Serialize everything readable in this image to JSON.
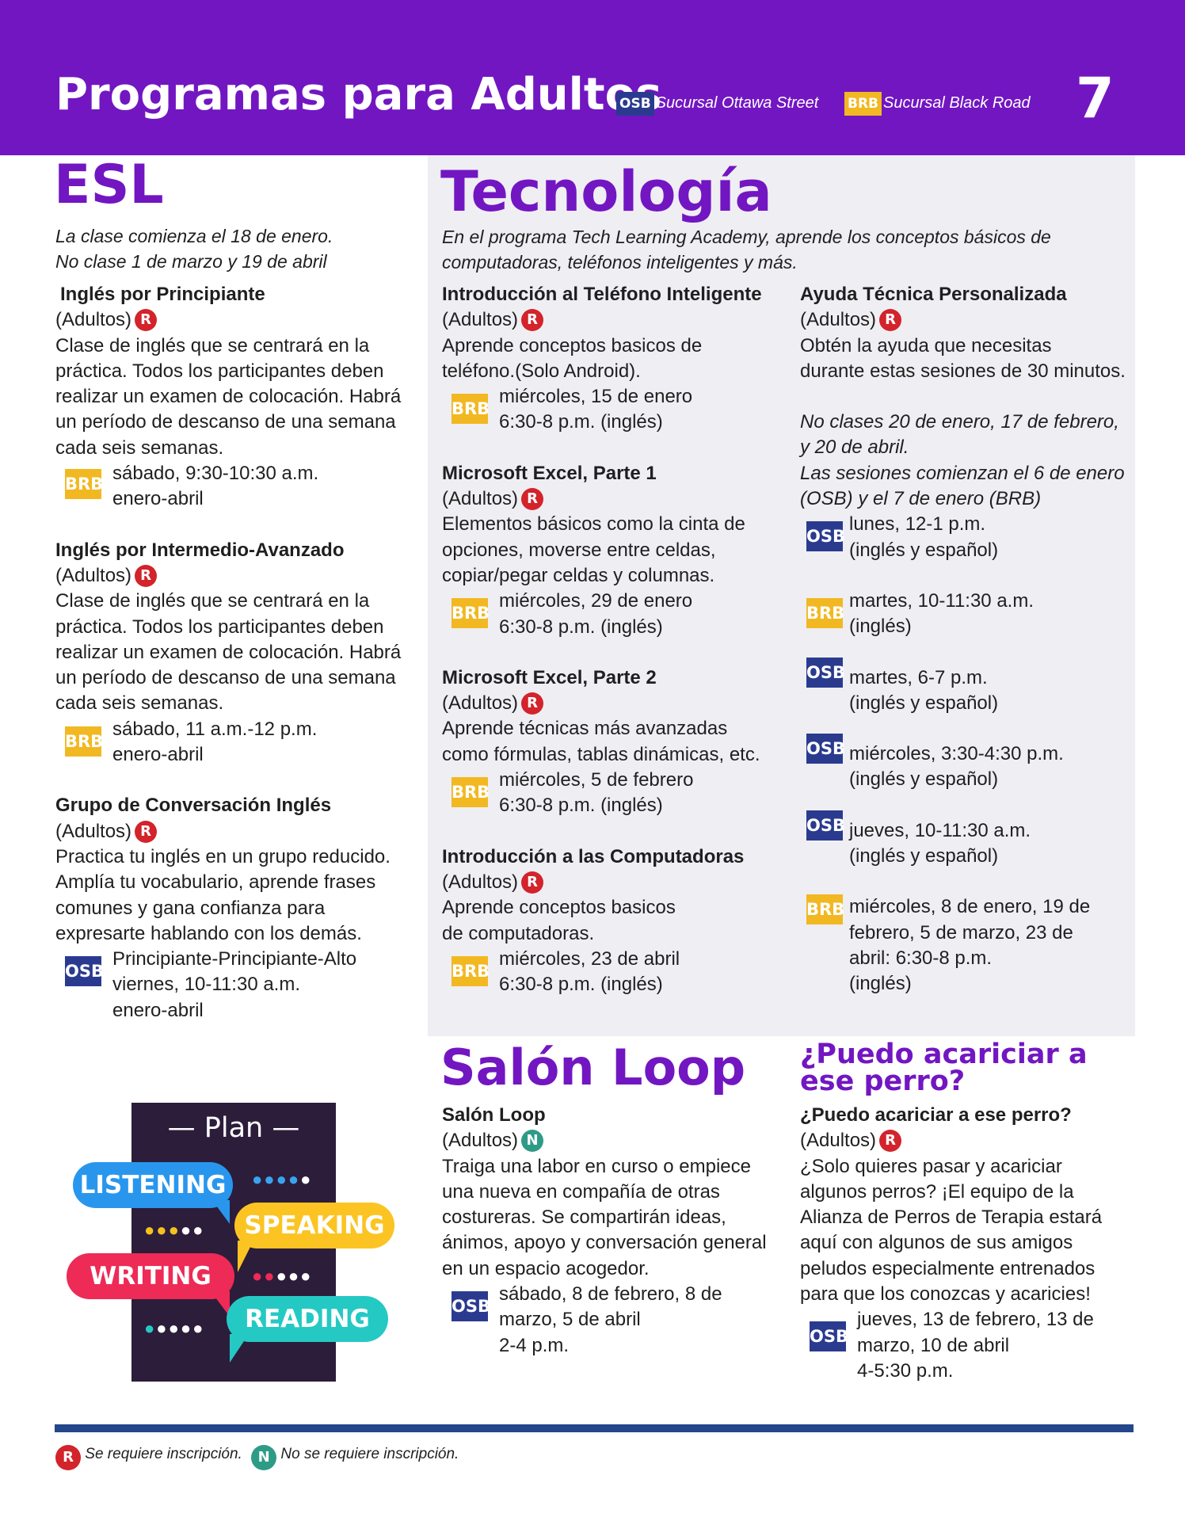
{
  "header": {
    "title": "Programas para Adultos",
    "osb_code": "OSB",
    "osb_name": "Sucursal Ottawa Street",
    "brb_code": "BRB",
    "brb_name": "Sucursal Black Road",
    "page_number": "7",
    "osb_color": "#2a3b8f",
    "brb_color": "#f2b822",
    "bg_color": "#7216c2"
  },
  "esl": {
    "title": "ESL",
    "intro": [
      "La clase comienza el 18 de enero.",
      "No clase 1 de marzo y 19 de abril"
    ],
    "programs": [
      {
        "name": "Inglés por Principiante",
        "audience": "(Adultos)",
        "badge": "R",
        "desc": [
          "Clase de inglés que se centrará en la",
          "práctica. Todos los participantes deben",
          "realizar un examen de colocación. Habrá",
          "un período de descanso de una semana",
          "cada seis semanas."
        ],
        "branch": "BRB",
        "when": [
          "sábado, 9:30-10:30 a.m.",
          "enero-abril"
        ]
      },
      {
        "name": "Inglés por Intermedio-Avanzado",
        "audience": "(Adultos)",
        "badge": "R",
        "desc": [
          "Clase de inglés que se centrará en la",
          "práctica. Todos los participantes deben",
          "realizar un examen de colocación. Habrá",
          "un período de descanso de una semana",
          "cada seis semanas."
        ],
        "branch": "BRB",
        "when": [
          "sábado, 11 a.m.-12 p.m.",
          "enero-abril"
        ]
      },
      {
        "name": "Grupo de Conversación Inglés",
        "audience": "(Adultos)",
        "badge": "R",
        "desc": [
          "Practica tu inglés en un grupo reducido.",
          "Amplía tu vocabulario, aprende frases",
          "comunes y gana confianza para",
          "expresarte hablando con los demás."
        ],
        "branch": "OSB",
        "when": [
          "Principiante-Principiante-Alto",
          "viernes, 10-11:30 a.m.",
          "enero-abril"
        ]
      }
    ]
  },
  "tech": {
    "title": "Tecnología",
    "intro": [
      "En el programa Tech Learning Academy, aprende los conceptos básicos de",
      "computadoras, teléfonos inteligentes y más."
    ],
    "left": [
      {
        "name": "Introducción al Teléfono Inteligente",
        "audience": "(Adultos)",
        "badge": "R",
        "desc": [
          "Aprende conceptos basicos de",
          "teléfono.(Solo Android)."
        ],
        "branch": "BRB",
        "when": [
          "miércoles, 15 de enero",
          "6:30-8 p.m. (inglés)"
        ]
      },
      {
        "name": "Microsoft Excel, Parte 1",
        "audience": "(Adultos)",
        "badge": "R",
        "desc": [
          "Elementos básicos como la cinta de",
          "opciones, moverse entre celdas,",
          "copiar/pegar celdas y columnas."
        ],
        "branch": "BRB",
        "when": [
          "miércoles, 29 de enero",
          "6:30-8 p.m. (inglés)"
        ]
      },
      {
        "name": "Microsoft Excel, Parte 2",
        "audience": "(Adultos)",
        "badge": "R",
        "desc": [
          "Aprende técnicas más avanzadas",
          "como fórmulas, tablas dinámicas, etc."
        ],
        "branch": "BRB",
        "when": [
          "miércoles, 5 de febrero",
          "6:30-8 p.m. (inglés)"
        ]
      },
      {
        "name": "Introducción a las Computadoras",
        "audience": "(Adultos)",
        "badge": "R",
        "desc": [
          "Aprende conceptos basicos",
          "de computadoras."
        ],
        "branch": "BRB",
        "when": [
          "miércoles, 23 de abril",
          "6:30-8 p.m. (inglés)"
        ]
      }
    ],
    "right": {
      "name": "Ayuda Técnica Personalizada",
      "audience": "(Adultos)",
      "badge": "R",
      "desc": [
        "Obtén la ayuda que necesitas",
        "durante estas sesiones de 30 minutos."
      ],
      "notes": [
        "No clases 20 de enero, 17 de febrero,",
        "y 20 de abril.",
        "Las sesiones comienzan el 6 de enero",
        "(OSB) y el 7 de enero (BRB)"
      ],
      "sessions": [
        {
          "branch": "OSB",
          "when": [
            "lunes, 12-1 p.m.",
            "(inglés y español)"
          ]
        },
        {
          "branch": "BRB",
          "when": [
            "martes, 10-11:30 a.m.",
            "(inglés)"
          ]
        },
        {
          "branch": "OSB",
          "when": [
            "martes, 6-7 p.m.",
            "(inglés y español)"
          ]
        },
        {
          "branch": "OSB",
          "when": [
            "miércoles, 3:30-4:30 p.m.",
            "(inglés y español)"
          ]
        },
        {
          "branch": "OSB",
          "when": [
            "jueves, 10-11:30 a.m.",
            "(inglés y español)"
          ]
        },
        {
          "branch": "BRB",
          "when": [
            "miércoles, 8 de enero, 19 de",
            "febrero, 5 de marzo, 23 de",
            "abril: 6:30-8 p.m.",
            "(inglés)"
          ]
        }
      ]
    }
  },
  "loop": {
    "title": "Salón Loop",
    "name": "Salón Loop",
    "audience": "(Adultos)",
    "badge": "N",
    "desc": [
      "Traiga una labor en curso o empiece",
      "una nueva en compañía de otras",
      "costureras. Se compartirán ideas,",
      "ánimos, apoyo y conversación general",
      "en un espacio acogedor."
    ],
    "branch": "OSB",
    "when": [
      "sábado, 8 de febrero, 8 de",
      "marzo, 5 de abril",
      "2-4 p.m."
    ]
  },
  "dog": {
    "title": [
      "¿Puedo acariciar a",
      "ese perro?"
    ],
    "name": "¿Puedo acariciar a ese perro?",
    "audience": "(Adultos)",
    "badge": "R",
    "desc": [
      "¿Solo quieres pasar y acariciar",
      "algunos perros? ¡El equipo de la",
      "Alianza de Perros de Terapia estará",
      "aquí con algunos de sus amigos",
      "peludos especialmente entrenados",
      "para que los conozcas y acaricies!"
    ],
    "branch": "OSB",
    "when": [
      "jueves, 13 de febrero, 13 de",
      "marzo, 10 de abril",
      "4-5:30 p.m."
    ]
  },
  "plan_graphic": {
    "heading": "Plan",
    "listening": "LISTENING",
    "speaking": "SPEAKING",
    "writing": "WRITING",
    "reading": "READING"
  },
  "footer": {
    "r_badge": "R",
    "r_text": "Se requiere inscripción.",
    "n_badge": "N",
    "n_text": "No se requiere inscripción."
  }
}
